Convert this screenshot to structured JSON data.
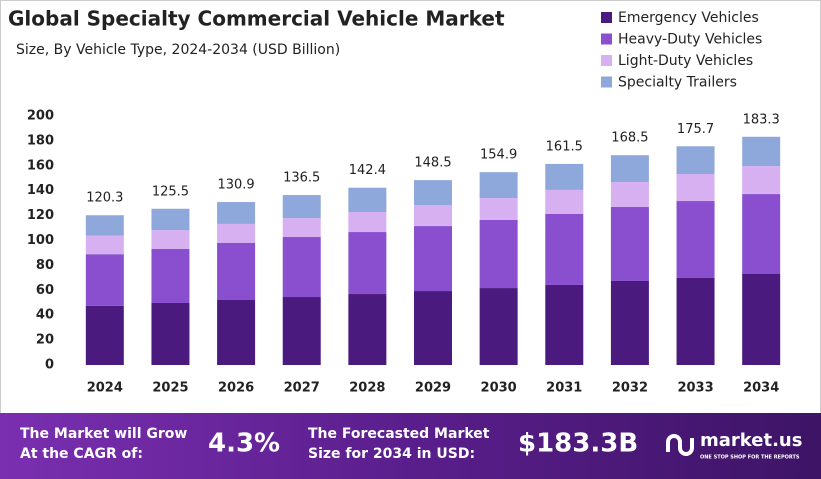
{
  "chart_data": {
    "type": "stacked_bar",
    "title": "Global Specialty Commercial Vehicle Market",
    "subtitle": "Size, By Vehicle Type, 2024-2034 (USD Billion)",
    "categories": [
      "2024",
      "2025",
      "2026",
      "2027",
      "2028",
      "2029",
      "2030",
      "2031",
      "2032",
      "2033",
      "2034"
    ],
    "series": [
      {
        "name": "Emergency Vehicles",
        "color": "#4a1a7e",
        "values": [
          47.5,
          49.8,
          52.2,
          54.6,
          57,
          59.4,
          61.8,
          64.3,
          67.5,
          69.9,
          73.1
        ]
      },
      {
        "name": "Heavy-Duty Vehicles",
        "color": "#8a4fcf",
        "values": [
          41.5,
          43.4,
          45.8,
          48.2,
          49.8,
          52.2,
          54.7,
          57,
          59.4,
          61.8,
          64.2
        ]
      },
      {
        "name": "Light-Duty Vehicles",
        "color": "#d6b0f0",
        "values": [
          14.8,
          15.2,
          15.3,
          15.2,
          16.1,
          16.9,
          17.6,
          19.3,
          20.1,
          21.7,
          22.5
        ]
      },
      {
        "name": "Specialty Trailers",
        "color": "#8fa8dc",
        "values": [
          16.5,
          17.1,
          17.6,
          18.5,
          19.5,
          20,
          20.8,
          20.9,
          21.5,
          22.3,
          23.5
        ]
      }
    ],
    "totals": [
      120.3,
      125.5,
      130.9,
      136.5,
      142.4,
      148.5,
      154.9,
      161.5,
      168.5,
      175.7,
      183.3
    ],
    "ylim": [
      0,
      200
    ],
    "yticks": [
      0,
      20,
      40,
      60,
      80,
      100,
      120,
      140,
      160,
      180,
      200
    ],
    "grid": false
  },
  "footer": {
    "cagr_label": [
      "The Market will Grow",
      "At the CAGR of:"
    ],
    "cagr": "4.3%",
    "forecast_label": [
      "The Forecasted Market",
      "Size for 2034 in USD:"
    ],
    "forecast": "$183.3B",
    "brand": "market.us",
    "tagline": "ONE STOP SHOP FOR THE REPORTS"
  }
}
